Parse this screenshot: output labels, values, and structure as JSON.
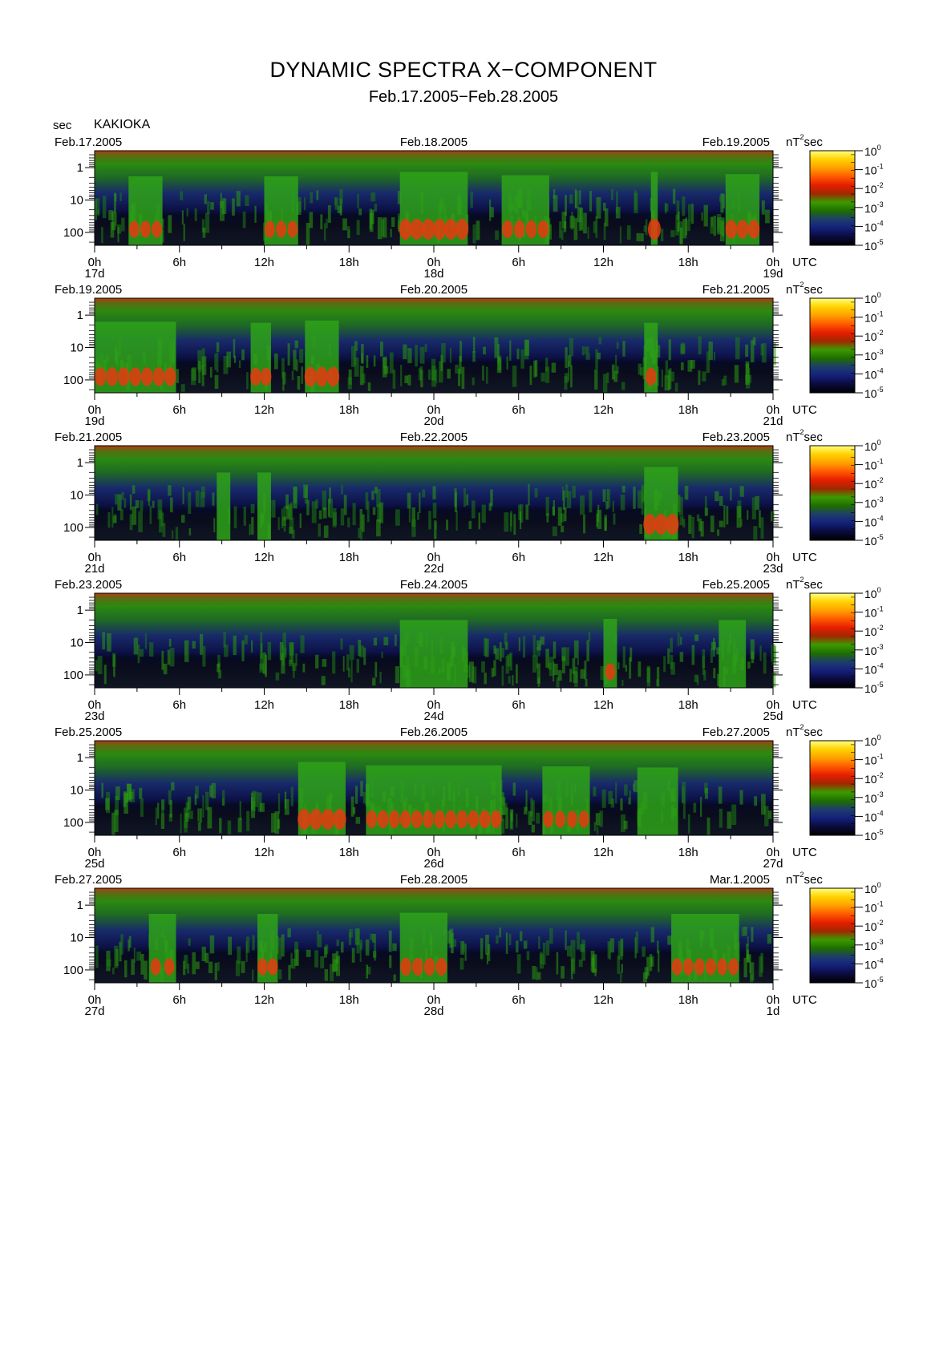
{
  "header": {
    "title": "DYNAMIC SPECTRA X−COMPONENT",
    "subtitle": "Feb.17.2005−Feb.28.2005",
    "unit": "sec",
    "station": "KAKIOKA"
  },
  "colorbar": {
    "unit": "nT",
    "unit_sup": "2",
    "unit_suffix": "sec",
    "ticks": [
      {
        "base": "10",
        "exp": "0"
      },
      {
        "base": "10",
        "exp": "-1"
      },
      {
        "base": "10",
        "exp": "-2"
      },
      {
        "base": "10",
        "exp": "-3"
      },
      {
        "base": "10",
        "exp": "-4"
      },
      {
        "base": "10",
        "exp": "-5"
      }
    ],
    "colors": [
      "#ffff80",
      "#ffd200",
      "#ffa000",
      "#ff5a00",
      "#e61e00",
      "#a02800",
      "#3c9a00",
      "#1e6e00",
      "#1e3c6e",
      "#14207a",
      "#0a0a3c",
      "#000000"
    ]
  },
  "chart_data": {
    "type": "heatmap",
    "y_axis": {
      "ticks": [
        "1",
        "10",
        "100"
      ],
      "scale": "log",
      "range": [
        0.3,
        250
      ],
      "inverted": true
    },
    "x_axis": {
      "ticks": [
        "0h",
        "6h",
        "12h",
        "18h",
        "0h",
        "6h",
        "12h",
        "18h",
        "0h"
      ],
      "suffix": "UTC"
    },
    "panels": [
      {
        "date_left": "Feb.17.2005",
        "date_mid": "Feb.18.2005",
        "date_right": "Feb.19.2005",
        "day_left": "17d",
        "day_mid": "18d",
        "day_right": "19d",
        "bursts": [
          [
            0.05,
            0.1,
            0.6
          ],
          [
            0.25,
            0.3,
            0.6
          ],
          [
            0.45,
            0.55,
            1.0
          ],
          [
            0.6,
            0.67,
            0.7
          ],
          [
            0.82,
            0.83,
            1.0
          ],
          [
            0.93,
            0.98,
            0.8
          ]
        ]
      },
      {
        "date_left": "Feb.19.2005",
        "date_mid": "Feb.20.2005",
        "date_right": "Feb.21.2005",
        "day_left": "19d",
        "day_mid": "20d",
        "day_right": "21d",
        "bursts": [
          [
            0.0,
            0.12,
            0.8
          ],
          [
            0.23,
            0.26,
            0.7
          ],
          [
            0.31,
            0.36,
            0.9
          ],
          [
            0.81,
            0.83,
            0.7
          ]
        ]
      },
      {
        "date_left": "Feb.21.2005",
        "date_mid": "Feb.22.2005",
        "date_right": "Feb.23.2005",
        "day_left": "21d",
        "day_mid": "22d",
        "day_right": "23d",
        "bursts": [
          [
            0.18,
            0.2,
            0.5
          ],
          [
            0.24,
            0.26,
            0.5
          ],
          [
            0.81,
            0.86,
            1.0
          ]
        ]
      },
      {
        "date_left": "Feb.23.2005",
        "date_mid": "Feb.24.2005",
        "date_right": "Feb.25.2005",
        "day_left": "23d",
        "day_mid": "24d",
        "day_right": "25d",
        "bursts": [
          [
            0.45,
            0.55,
            0.5
          ],
          [
            0.75,
            0.77,
            0.6
          ],
          [
            0.92,
            0.96,
            0.5
          ]
        ]
      },
      {
        "date_left": "Feb.25.2005",
        "date_mid": "Feb.26.2005",
        "date_right": "Feb.27.2005",
        "day_left": "25d",
        "day_mid": "26d",
        "day_right": "27d",
        "bursts": [
          [
            0.3,
            0.37,
            1.0
          ],
          [
            0.4,
            0.6,
            0.7
          ],
          [
            0.66,
            0.73,
            0.6
          ],
          [
            0.8,
            0.86,
            0.5
          ]
        ]
      },
      {
        "date_left": "Feb.27.2005",
        "date_mid": "Feb.28.2005",
        "date_right": "Mar.1.2005",
        "day_left": "27d",
        "day_mid": "28d",
        "day_right": "1d",
        "bursts": [
          [
            0.08,
            0.12,
            0.6
          ],
          [
            0.24,
            0.27,
            0.6
          ],
          [
            0.45,
            0.52,
            0.7
          ],
          [
            0.85,
            0.95,
            0.6
          ]
        ]
      }
    ]
  }
}
